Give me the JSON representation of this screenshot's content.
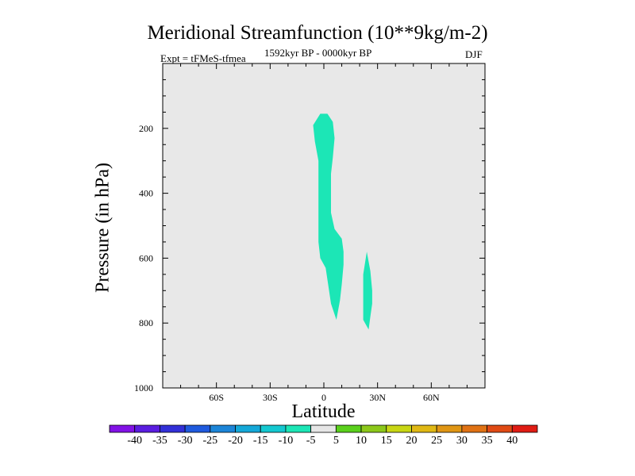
{
  "chart_data": {
    "type": "contour",
    "title": "Meridional Streamfunction (10**9kg/m-2)",
    "subtitle_left": "Expt = tFMeS-tfmea",
    "subtitle_center": "1592kyr BP - 0000kyr BP",
    "subtitle_right": "DJF",
    "xlabel": "Latitude",
    "ylabel": "Pressure (in hPa)",
    "xlim": [
      -90,
      90
    ],
    "ylim": [
      1000,
      0
    ],
    "x_ticks": [
      {
        "value": -60,
        "label": "60S"
      },
      {
        "value": -30,
        "label": "30S"
      },
      {
        "value": 0,
        "label": "0"
      },
      {
        "value": 30,
        "label": "30N"
      },
      {
        "value": 60,
        "label": "60N"
      }
    ],
    "y_ticks": [
      {
        "value": 200,
        "label": "200"
      },
      {
        "value": 400,
        "label": "400"
      },
      {
        "value": 600,
        "label": "600"
      },
      {
        "value": 800,
        "label": "800"
      },
      {
        "value": 1000,
        "label": "1000"
      }
    ],
    "background_color": "#e8e8e8",
    "filled_regions": [
      {
        "name": "equatorial-region",
        "level_range": [
          -10,
          -5
        ],
        "color": "#1ce6b6",
        "points": [
          [
            -6,
            190
          ],
          [
            -2,
            155
          ],
          [
            2,
            155
          ],
          [
            5,
            180
          ],
          [
            6,
            230
          ],
          [
            5,
            290
          ],
          [
            4,
            340
          ],
          [
            4,
            400
          ],
          [
            4,
            460
          ],
          [
            6,
            510
          ],
          [
            10,
            540
          ],
          [
            11,
            580
          ],
          [
            11,
            620
          ],
          [
            10,
            680
          ],
          [
            9,
            730
          ],
          [
            7,
            790
          ],
          [
            4,
            740
          ],
          [
            1,
            630
          ],
          [
            -2,
            600
          ],
          [
            -3,
            550
          ],
          [
            -3,
            450
          ],
          [
            -3,
            300
          ],
          [
            -5,
            240
          ]
        ]
      },
      {
        "name": "subtropical-region",
        "level_range": [
          -10,
          -5
        ],
        "color": "#1ce6b6",
        "points": [
          [
            24,
            580
          ],
          [
            26,
            640
          ],
          [
            27,
            700
          ],
          [
            27,
            740
          ],
          [
            26,
            780
          ],
          [
            25,
            820
          ],
          [
            22,
            790
          ],
          [
            22,
            720
          ],
          [
            22,
            650
          ]
        ]
      }
    ],
    "colorbar": {
      "labels": [
        "-40",
        "-35",
        "-30",
        "-25",
        "-20",
        "-15",
        "-10",
        "-5",
        "5",
        "10",
        "15",
        "20",
        "25",
        "30",
        "35",
        "40"
      ],
      "colors": [
        "#8212e6",
        "#5a1de0",
        "#3230d8",
        "#1f5ade",
        "#1c85d8",
        "#14a8d8",
        "#14c8d0",
        "#1ce6b6",
        "#e6e6e6",
        "#5ad01c",
        "#8cc81a",
        "#c8d614",
        "#e0b814",
        "#e09614",
        "#e07214",
        "#e04a14",
        "#e01c14"
      ]
    }
  }
}
